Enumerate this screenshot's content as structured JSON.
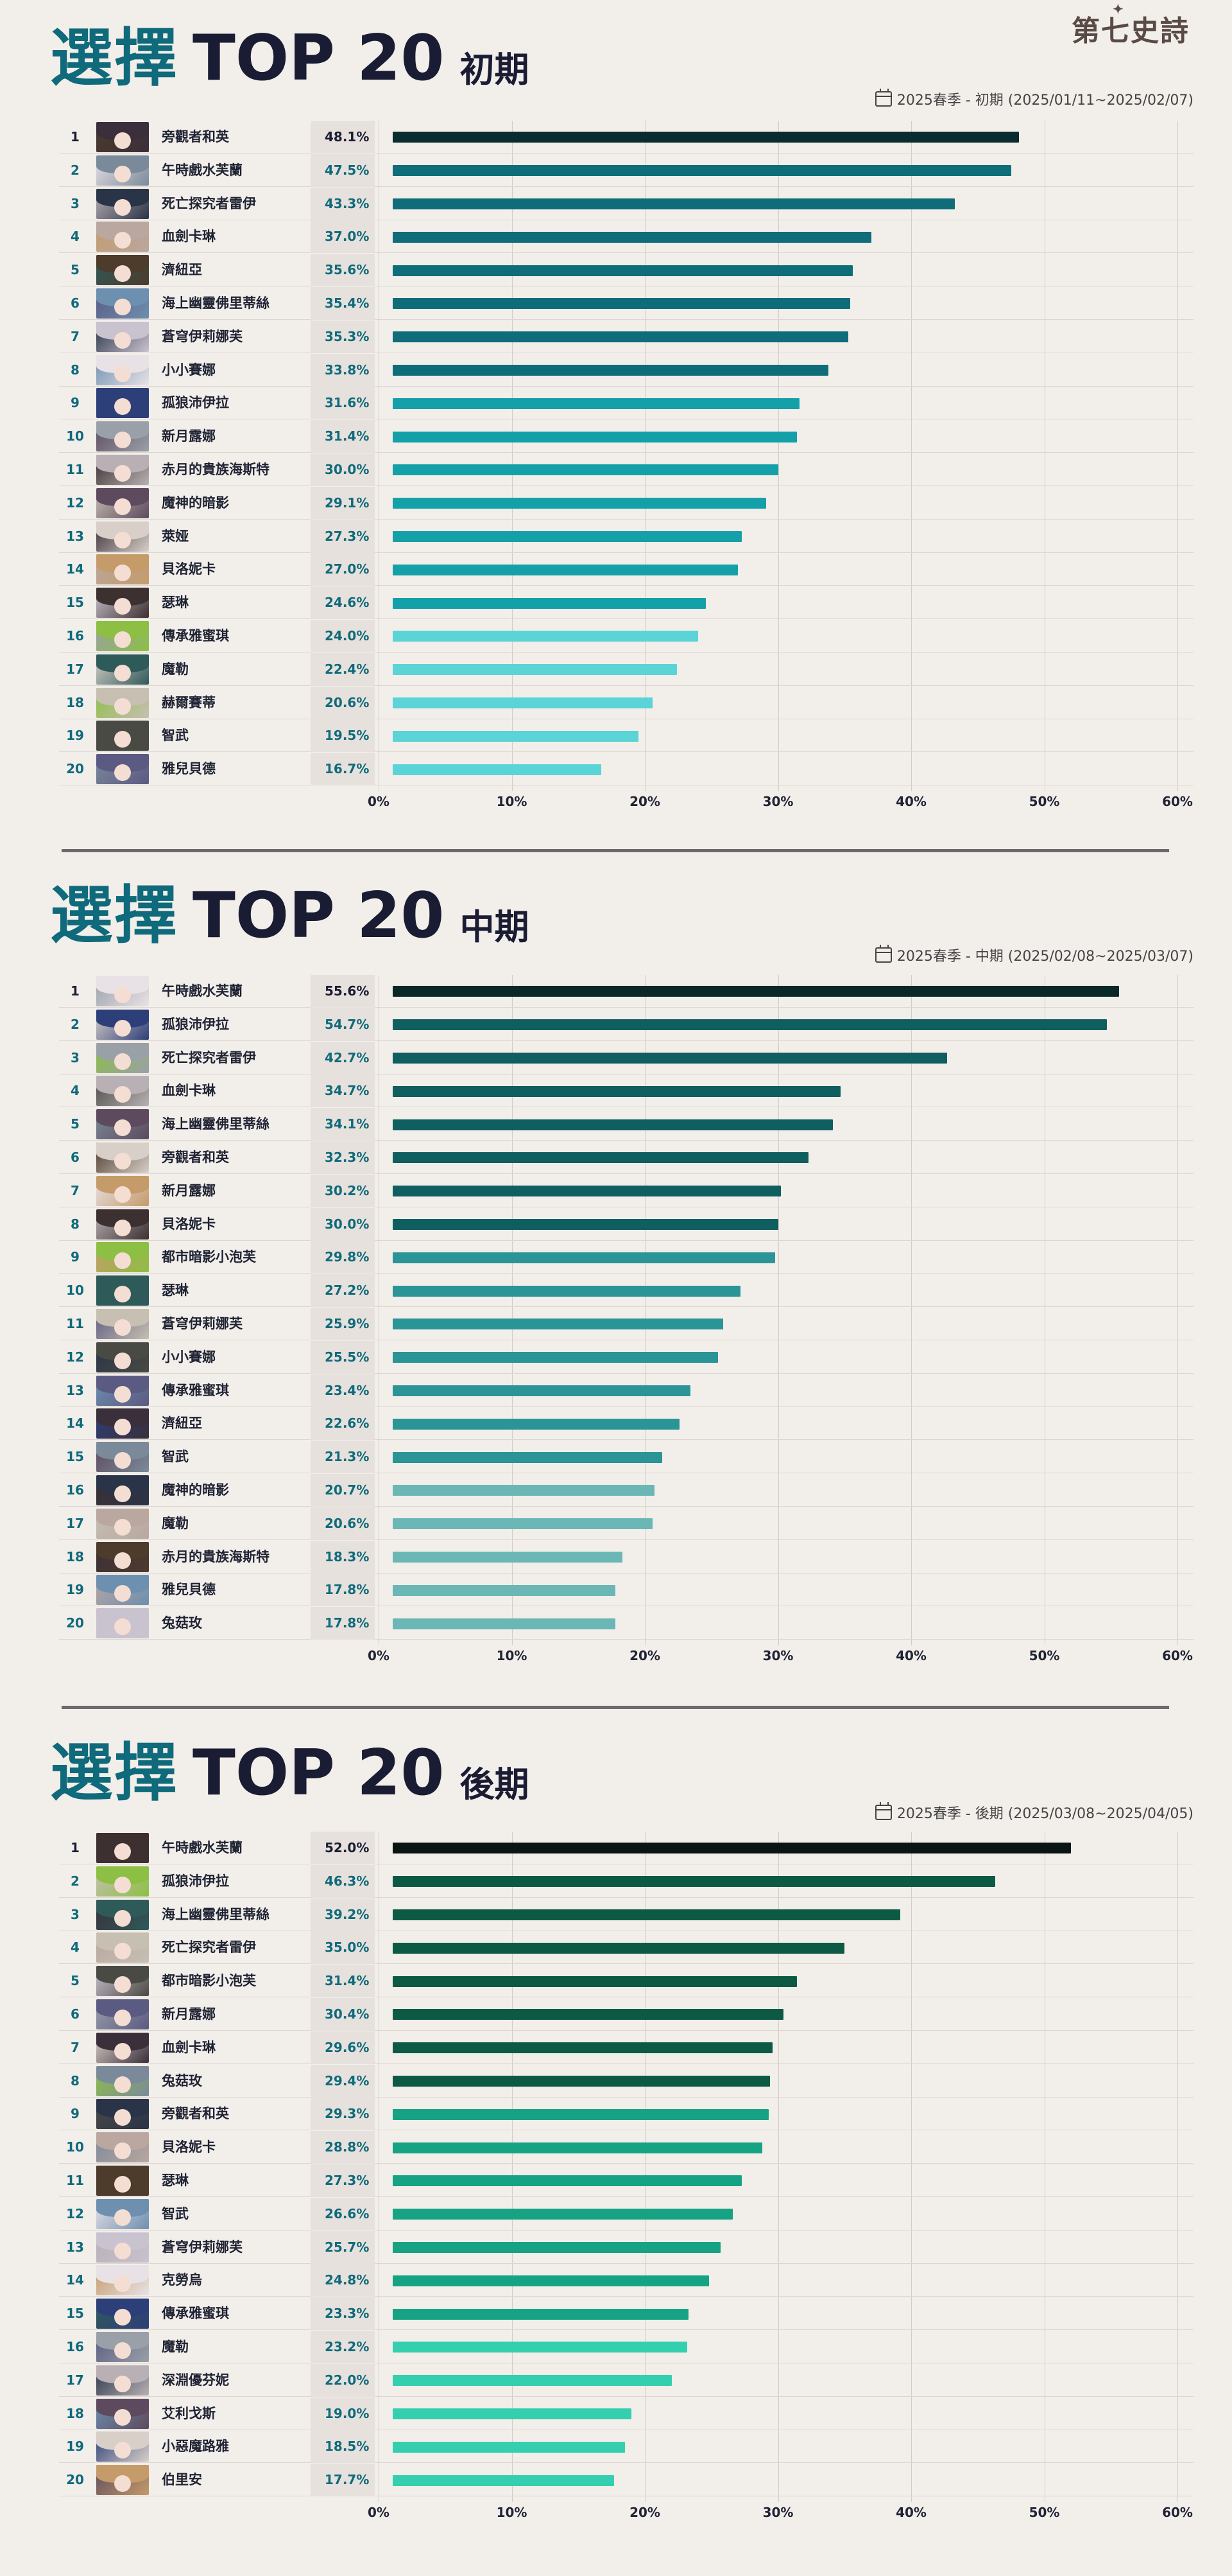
{
  "logo": "第七史詩",
  "colors": {
    "title_accent": "#0f6a7b",
    "title_dark": "#1a1c33",
    "grid": "#d4ccc6"
  },
  "x_ticks": [
    "0%",
    "10%",
    "20%",
    "30%",
    "40%",
    "50%",
    "60%"
  ],
  "sections": [
    {
      "title_choose": "選擇",
      "title_top": "TOP 20",
      "phase": "初期",
      "date_range": "2025春季 - 初期 (2025/01/11~2025/02/07)",
      "colors": [
        "#0a2b2f",
        "#0f6c79",
        "#14a0a8",
        "#5ad4d6"
      ]
    },
    {
      "title_choose": "選擇",
      "title_top": "TOP 20",
      "phase": "中期",
      "date_range": "2025春季 - 中期 (2025/02/08~2025/03/07)",
      "colors": [
        "#0a2828",
        "#0f5e60",
        "#2a9497",
        "#6ab7b6"
      ]
    },
    {
      "title_choose": "選擇",
      "title_top": "TOP 20",
      "phase": "後期",
      "date_range": "2025春季 - 後期 (2025/03/08~2025/04/05)",
      "colors": [
        "#081512",
        "#0d5a44",
        "#16a384",
        "#34cfae"
      ]
    }
  ],
  "chart_data": [
    {
      "type": "bar",
      "orientation": "horizontal",
      "xlim": [
        0,
        60
      ],
      "unit": "%",
      "categories": [
        "旁觀者和英",
        "午時戲水芙蘭",
        "死亡探究者雷伊",
        "血劍卡琳",
        "濟紐亞",
        "海上幽靈佛里蒂絲",
        "蒼穹伊莉娜芙",
        "小小賽娜",
        "孤狼沛伊拉",
        "新月露娜",
        "赤月的貴族海斯特",
        "魔神的暗影",
        "萊娅",
        "貝洛妮卡",
        "瑟琳",
        "傳承雅蜜琪",
        "魔勒",
        "赫爾賽蒂",
        "智武",
        "雅兒貝德"
      ],
      "values": [
        48.1,
        47.5,
        43.3,
        37.0,
        35.6,
        35.4,
        35.3,
        33.8,
        31.6,
        31.4,
        30.0,
        29.1,
        27.3,
        27.0,
        24.6,
        24.0,
        22.4,
        20.6,
        19.5,
        16.7
      ],
      "labels": [
        "48.1%",
        "47.5%",
        "43.3%",
        "37.0%",
        "35.6%",
        "35.4%",
        "35.3%",
        "33.8%",
        "31.6%",
        "31.4%",
        "30.0%",
        "29.1%",
        "27.3%",
        "27.0%",
        "24.6%",
        "24.0%",
        "22.4%",
        "20.6%",
        "19.5%",
        "16.7%"
      ]
    },
    {
      "type": "bar",
      "orientation": "horizontal",
      "xlim": [
        0,
        60
      ],
      "unit": "%",
      "categories": [
        "午時戲水芙蘭",
        "孤狼沛伊拉",
        "死亡探究者雷伊",
        "血劍卡琳",
        "海上幽靈佛里蒂絲",
        "旁觀者和英",
        "新月露娜",
        "貝洛妮卡",
        "都市暗影小泡芙",
        "瑟琳",
        "蒼穹伊莉娜芙",
        "小小賽娜",
        "傳承雅蜜琪",
        "濟紐亞",
        "智武",
        "魔神的暗影",
        "魔勒",
        "赤月的貴族海斯特",
        "雅兒貝德",
        "兔菇玫"
      ],
      "values": [
        55.6,
        54.7,
        42.7,
        34.7,
        34.1,
        32.3,
        30.2,
        30.0,
        29.8,
        27.2,
        25.9,
        25.5,
        23.4,
        22.6,
        21.3,
        20.7,
        20.6,
        18.3,
        17.8,
        17.8
      ],
      "labels": [
        "55.6%",
        "54.7%",
        "42.7%",
        "34.7%",
        "34.1%",
        "32.3%",
        "30.2%",
        "30.0%",
        "29.8%",
        "27.2%",
        "25.9%",
        "25.5%",
        "23.4%",
        "22.6%",
        "21.3%",
        "20.7%",
        "20.6%",
        "18.3%",
        "17.8%",
        "17.8%"
      ]
    },
    {
      "type": "bar",
      "orientation": "horizontal",
      "xlim": [
        0,
        60
      ],
      "unit": "%",
      "categories": [
        "午時戲水芙蘭",
        "孤狼沛伊拉",
        "海上幽靈佛里蒂絲",
        "死亡探究者雷伊",
        "都市暗影小泡芙",
        "新月露娜",
        "血劍卡琳",
        "兔菇玫",
        "旁觀者和英",
        "貝洛妮卡",
        "瑟琳",
        "智武",
        "蒼穹伊莉娜芙",
        "克勞烏",
        "傳承雅蜜琪",
        "魔勒",
        "深淵優芬妮",
        "艾利戈斯",
        "小惡魔路雅",
        "伯里安"
      ],
      "values": [
        52.0,
        46.3,
        39.2,
        35.0,
        31.4,
        30.4,
        29.6,
        29.4,
        29.3,
        28.8,
        27.3,
        26.6,
        25.7,
        24.8,
        23.3,
        23.2,
        22.0,
        19.0,
        18.5,
        17.7
      ],
      "labels": [
        "52.0%",
        "46.3%",
        "39.2%",
        "35.0%",
        "31.4%",
        "30.4%",
        "29.6%",
        "29.4%",
        "29.3%",
        "28.8%",
        "27.3%",
        "26.6%",
        "25.7%",
        "24.8%",
        "23.3%",
        "23.2%",
        "22.0%",
        "19.0%",
        "18.5%",
        "17.7%"
      ]
    }
  ]
}
